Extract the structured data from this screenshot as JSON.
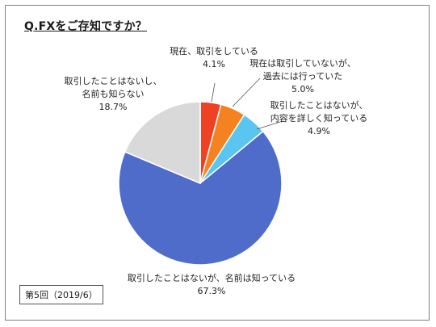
{
  "chart_data": {
    "type": "pie",
    "title": "Q.FXをご存知ですか？",
    "note": "第5回（2019/6）",
    "start_angle_deg": 0,
    "direction": "clockwise",
    "slices": [
      {
        "label_lines": [
          "現在、取引をしている"
        ],
        "value": 4.1,
        "value_label": "4.1%",
        "color": "#ef4123"
      },
      {
        "label_lines": [
          "現在は取引していないが、",
          "過去には行っていた"
        ],
        "value": 5.0,
        "value_label": "5.0%",
        "color": "#f58220"
      },
      {
        "label_lines": [
          "取引したことはないが、",
          "内容を詳しく知っている"
        ],
        "value": 4.9,
        "value_label": "4.9%",
        "color": "#5bc5f2"
      },
      {
        "label_lines": [
          "取引したことはないが、名前は知っている"
        ],
        "value": 67.3,
        "value_label": "67.3%",
        "color": "#4f6ccb"
      },
      {
        "label_lines": [
          "取引したことはないし、",
          "名前も知らない"
        ],
        "value": 18.7,
        "value_label": "18.7%",
        "color": "#d9d9d9"
      }
    ]
  }
}
